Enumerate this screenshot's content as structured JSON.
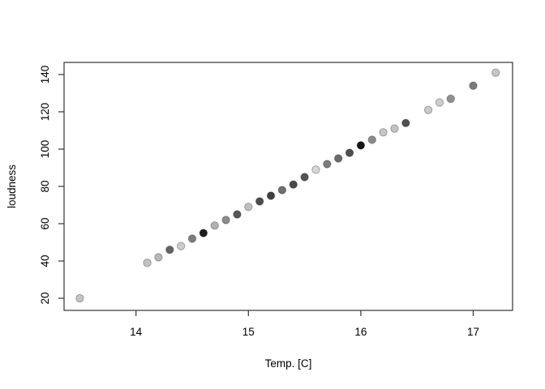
{
  "chart_data": {
    "type": "scatter",
    "title": "",
    "xlabel": "Temp. [C]",
    "ylabel": "loudness",
    "xlim": [
      13.36,
      17.35
    ],
    "ylim": [
      13.5,
      146.5
    ],
    "xticks": [
      14,
      15,
      16,
      17
    ],
    "yticks": [
      20,
      40,
      60,
      80,
      100,
      120,
      140
    ],
    "grid": false,
    "legend": null,
    "marker": {
      "shape": "filled-circle",
      "radius": 4.7,
      "stroke": "rgba(0,0,0,0.3)"
    },
    "colors": {
      "axis": "#333333",
      "text": "#000000",
      "background": "#ffffff"
    },
    "points": [
      {
        "x": 13.5,
        "y": 20,
        "color": "#c4c4c4"
      },
      {
        "x": 14.1,
        "y": 39,
        "color": "#c2c2c2"
      },
      {
        "x": 14.2,
        "y": 42,
        "color": "#b8b8b8"
      },
      {
        "x": 14.3,
        "y": 46,
        "color": "#636363"
      },
      {
        "x": 14.4,
        "y": 48,
        "color": "#cbcbcb"
      },
      {
        "x": 14.5,
        "y": 52,
        "color": "#7d7d7d"
      },
      {
        "x": 14.6,
        "y": 55,
        "color": "#1c1c1c"
      },
      {
        "x": 14.7,
        "y": 59,
        "color": "#b2b2b2"
      },
      {
        "x": 14.8,
        "y": 62,
        "color": "#8c8c8c"
      },
      {
        "x": 14.9,
        "y": 65,
        "color": "#575757"
      },
      {
        "x": 15.0,
        "y": 69,
        "color": "#c0c0c0"
      },
      {
        "x": 15.1,
        "y": 72,
        "color": "#4d4d4d"
      },
      {
        "x": 15.2,
        "y": 75,
        "color": "#404040"
      },
      {
        "x": 15.3,
        "y": 78,
        "color": "#6f6f6f"
      },
      {
        "x": 15.4,
        "y": 81,
        "color": "#4a4a4a"
      },
      {
        "x": 15.5,
        "y": 85,
        "color": "#545454"
      },
      {
        "x": 15.6,
        "y": 89,
        "color": "#d6d6d6"
      },
      {
        "x": 15.7,
        "y": 92,
        "color": "#7d7d7d"
      },
      {
        "x": 15.8,
        "y": 95,
        "color": "#6b6b6b"
      },
      {
        "x": 15.9,
        "y": 98,
        "color": "#4f4f4f"
      },
      {
        "x": 16.0,
        "y": 102,
        "color": "#161616"
      },
      {
        "x": 16.1,
        "y": 105,
        "color": "#8a8a8a"
      },
      {
        "x": 16.2,
        "y": 109,
        "color": "#c6c6c6"
      },
      {
        "x": 16.3,
        "y": 111,
        "color": "#c3c3c3"
      },
      {
        "x": 16.4,
        "y": 114,
        "color": "#505050"
      },
      {
        "x": 16.6,
        "y": 121,
        "color": "#c9c9c9"
      },
      {
        "x": 16.7,
        "y": 125,
        "color": "#cdcdcd"
      },
      {
        "x": 16.8,
        "y": 127,
        "color": "#909090"
      },
      {
        "x": 17.0,
        "y": 134,
        "color": "#7a7a7a"
      },
      {
        "x": 17.2,
        "y": 141,
        "color": "#c5c5c5"
      }
    ]
  }
}
